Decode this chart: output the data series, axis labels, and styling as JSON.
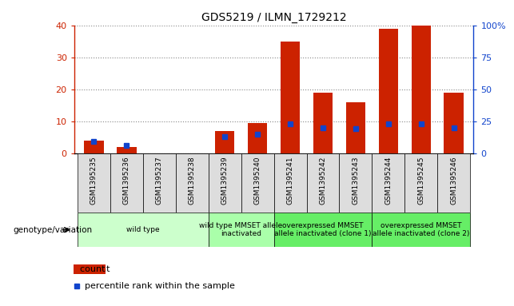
{
  "title": "GDS5219 / ILMN_1729212",
  "samples": [
    "GSM1395235",
    "GSM1395236",
    "GSM1395237",
    "GSM1395238",
    "GSM1395239",
    "GSM1395240",
    "GSM1395241",
    "GSM1395242",
    "GSM1395243",
    "GSM1395244",
    "GSM1395245",
    "GSM1395246"
  ],
  "counts": [
    4,
    2,
    0,
    0,
    7,
    9.5,
    35,
    19,
    16,
    39,
    40,
    19
  ],
  "percentiles": [
    9,
    6,
    null,
    null,
    13,
    15,
    23,
    20,
    19,
    23,
    23,
    20
  ],
  "bar_color": "#cc2200",
  "dot_color": "#1144cc",
  "ylim_left": [
    0,
    40
  ],
  "ylim_right": [
    0,
    100
  ],
  "yticks_left": [
    0,
    10,
    20,
    30,
    40
  ],
  "yticks_right": [
    0,
    25,
    50,
    75,
    100
  ],
  "yticklabels_right": [
    "0",
    "25",
    "50",
    "75",
    "100%"
  ],
  "groups": [
    {
      "label": "wild type",
      "start": 0,
      "end": 3,
      "color": "#ccffcc"
    },
    {
      "label": "wild type MMSET allele\ninactivated",
      "start": 4,
      "end": 5,
      "color": "#aaffaa"
    },
    {
      "label": "overexpressed MMSET\nallele inactivated (clone 1)",
      "start": 6,
      "end": 8,
      "color": "#66ee66"
    },
    {
      "label": "overexpressed MMSET\nallele inactivated (clone 2)",
      "start": 9,
      "end": 11,
      "color": "#66ee66"
    }
  ],
  "genotype_label": "genotype/variation",
  "legend_count": "count",
  "legend_percentile": "percentile rank within the sample",
  "tick_bg_color": "#dddddd",
  "grid_color": "#888888"
}
